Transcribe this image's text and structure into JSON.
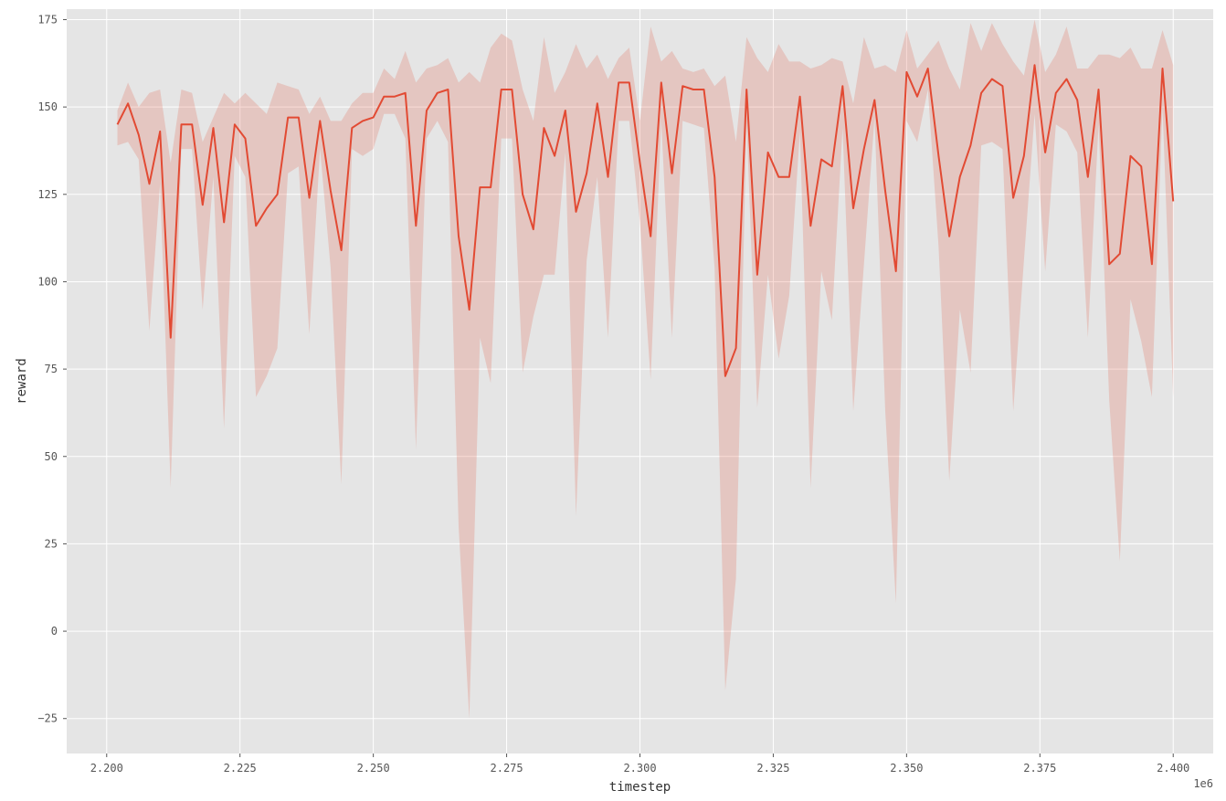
{
  "chart_data": {
    "type": "line",
    "title": "",
    "xlabel": "timestep",
    "ylabel": "reward",
    "x_offset_label": "1e6",
    "xlim": [
      2.1925,
      2.4075
    ],
    "ylim": [
      -35,
      178
    ],
    "grid": true,
    "x_ticks": [
      {
        "value": 2.2,
        "label": "2.200"
      },
      {
        "value": 2.225,
        "label": "2.225"
      },
      {
        "value": 2.25,
        "label": "2.250"
      },
      {
        "value": 2.275,
        "label": "2.275"
      },
      {
        "value": 2.3,
        "label": "2.300"
      },
      {
        "value": 2.325,
        "label": "2.325"
      },
      {
        "value": 2.35,
        "label": "2.350"
      },
      {
        "value": 2.375,
        "label": "2.375"
      },
      {
        "value": 2.4,
        "label": "2.400"
      }
    ],
    "y_ticks": [
      {
        "value": -25,
        "label": "−25"
      },
      {
        "value": 0,
        "label": "0"
      },
      {
        "value": 25,
        "label": "25"
      },
      {
        "value": 50,
        "label": "50"
      },
      {
        "value": 75,
        "label": "75"
      },
      {
        "value": 100,
        "label": "100"
      },
      {
        "value": 125,
        "label": "125"
      },
      {
        "value": 150,
        "label": "150"
      },
      {
        "value": 175,
        "label": "175"
      }
    ],
    "colors": {
      "plot_background": "#e5e5e5",
      "line": "#e24a33",
      "band": "#e24a33",
      "grid": "#ffffff"
    },
    "series": [
      {
        "x": [
          2.202,
          2.204,
          2.206,
          2.208,
          2.21,
          2.212,
          2.214,
          2.216,
          2.218,
          2.22,
          2.222,
          2.224,
          2.226,
          2.228,
          2.23,
          2.232,
          2.234,
          2.236,
          2.238,
          2.24,
          2.242,
          2.244,
          2.246,
          2.248,
          2.25,
          2.252,
          2.254,
          2.256,
          2.258,
          2.26,
          2.262,
          2.264,
          2.266,
          2.268,
          2.27,
          2.272,
          2.274,
          2.276,
          2.278,
          2.28,
          2.282,
          2.284,
          2.286,
          2.288,
          2.29,
          2.292,
          2.294,
          2.296,
          2.298,
          2.3,
          2.302,
          2.304,
          2.306,
          2.308,
          2.31,
          2.312,
          2.314,
          2.316,
          2.318,
          2.32,
          2.322,
          2.324,
          2.326,
          2.328,
          2.33,
          2.332,
          2.334,
          2.336,
          2.338,
          2.34,
          2.342,
          2.344,
          2.346,
          2.348,
          2.35,
          2.352,
          2.354,
          2.356,
          2.358,
          2.36,
          2.362,
          2.364,
          2.366,
          2.368,
          2.37,
          2.372,
          2.374,
          2.376,
          2.378,
          2.38,
          2.382,
          2.384,
          2.386,
          2.388,
          2.39,
          2.392,
          2.394,
          2.396,
          2.398,
          2.4
        ],
        "mean": [
          145,
          151,
          142,
          128,
          143,
          84,
          145,
          145,
          122,
          144,
          117,
          145,
          141,
          116,
          121,
          125,
          147,
          147,
          124,
          146,
          126,
          109,
          144,
          146,
          147,
          153,
          153,
          154,
          116,
          149,
          154,
          155,
          113,
          92,
          127,
          127,
          155,
          155,
          125,
          115,
          144,
          136,
          149,
          120,
          131,
          151,
          130,
          157,
          157,
          134,
          113,
          157,
          131,
          156,
          155,
          155,
          130,
          73,
          81,
          155,
          102,
          137,
          130,
          130,
          153,
          116,
          135,
          133,
          156,
          121,
          138,
          152,
          126,
          103,
          160,
          153,
          161,
          136,
          113,
          130,
          139,
          154,
          158,
          156,
          124,
          136,
          162,
          137,
          154,
          158,
          152,
          130,
          155,
          105,
          108,
          136,
          133,
          105,
          161,
          123
        ],
        "upper": [
          149,
          157,
          150,
          154,
          155,
          134,
          155,
          154,
          140,
          147,
          154,
          151,
          154,
          151,
          148,
          157,
          156,
          155,
          148,
          153,
          146,
          146,
          151,
          154,
          154,
          161,
          158,
          166,
          157,
          161,
          162,
          164,
          157,
          160,
          157,
          167,
          171,
          169,
          155,
          146,
          170,
          154,
          160,
          168,
          161,
          165,
          158,
          164,
          167,
          146,
          173,
          163,
          166,
          161,
          160,
          161,
          156,
          159,
          140,
          170,
          164,
          160,
          168,
          163,
          163,
          161,
          162,
          164,
          163,
          151,
          170,
          161,
          162,
          160,
          172,
          161,
          165,
          169,
          161,
          155,
          174,
          166,
          174,
          168,
          163,
          159,
          175,
          160,
          165,
          173,
          161,
          161,
          165,
          165,
          164,
          167,
          161,
          161,
          172,
          162
        ],
        "lower": [
          139,
          140,
          135,
          86,
          128,
          41,
          138,
          138,
          92,
          130,
          58,
          136,
          130,
          67,
          73,
          81,
          131,
          133,
          85,
          138,
          104,
          42,
          138,
          136,
          138,
          148,
          148,
          141,
          52,
          141,
          146,
          140,
          30,
          -25,
          84,
          71,
          141,
          141,
          74,
          90,
          102,
          102,
          137,
          33,
          106,
          130,
          84,
          146,
          146,
          117,
          72,
          146,
          84,
          146,
          145,
          144,
          104,
          -17,
          15,
          146,
          64,
          102,
          78,
          96,
          143,
          41,
          103,
          89,
          144,
          63,
          105,
          147,
          63,
          8,
          146,
          140,
          155,
          110,
          43,
          92,
          74,
          139,
          140,
          138,
          63,
          106,
          148,
          103,
          145,
          143,
          137,
          84,
          145,
          66,
          20,
          95,
          83,
          67,
          150,
          67
        ]
      }
    ]
  }
}
